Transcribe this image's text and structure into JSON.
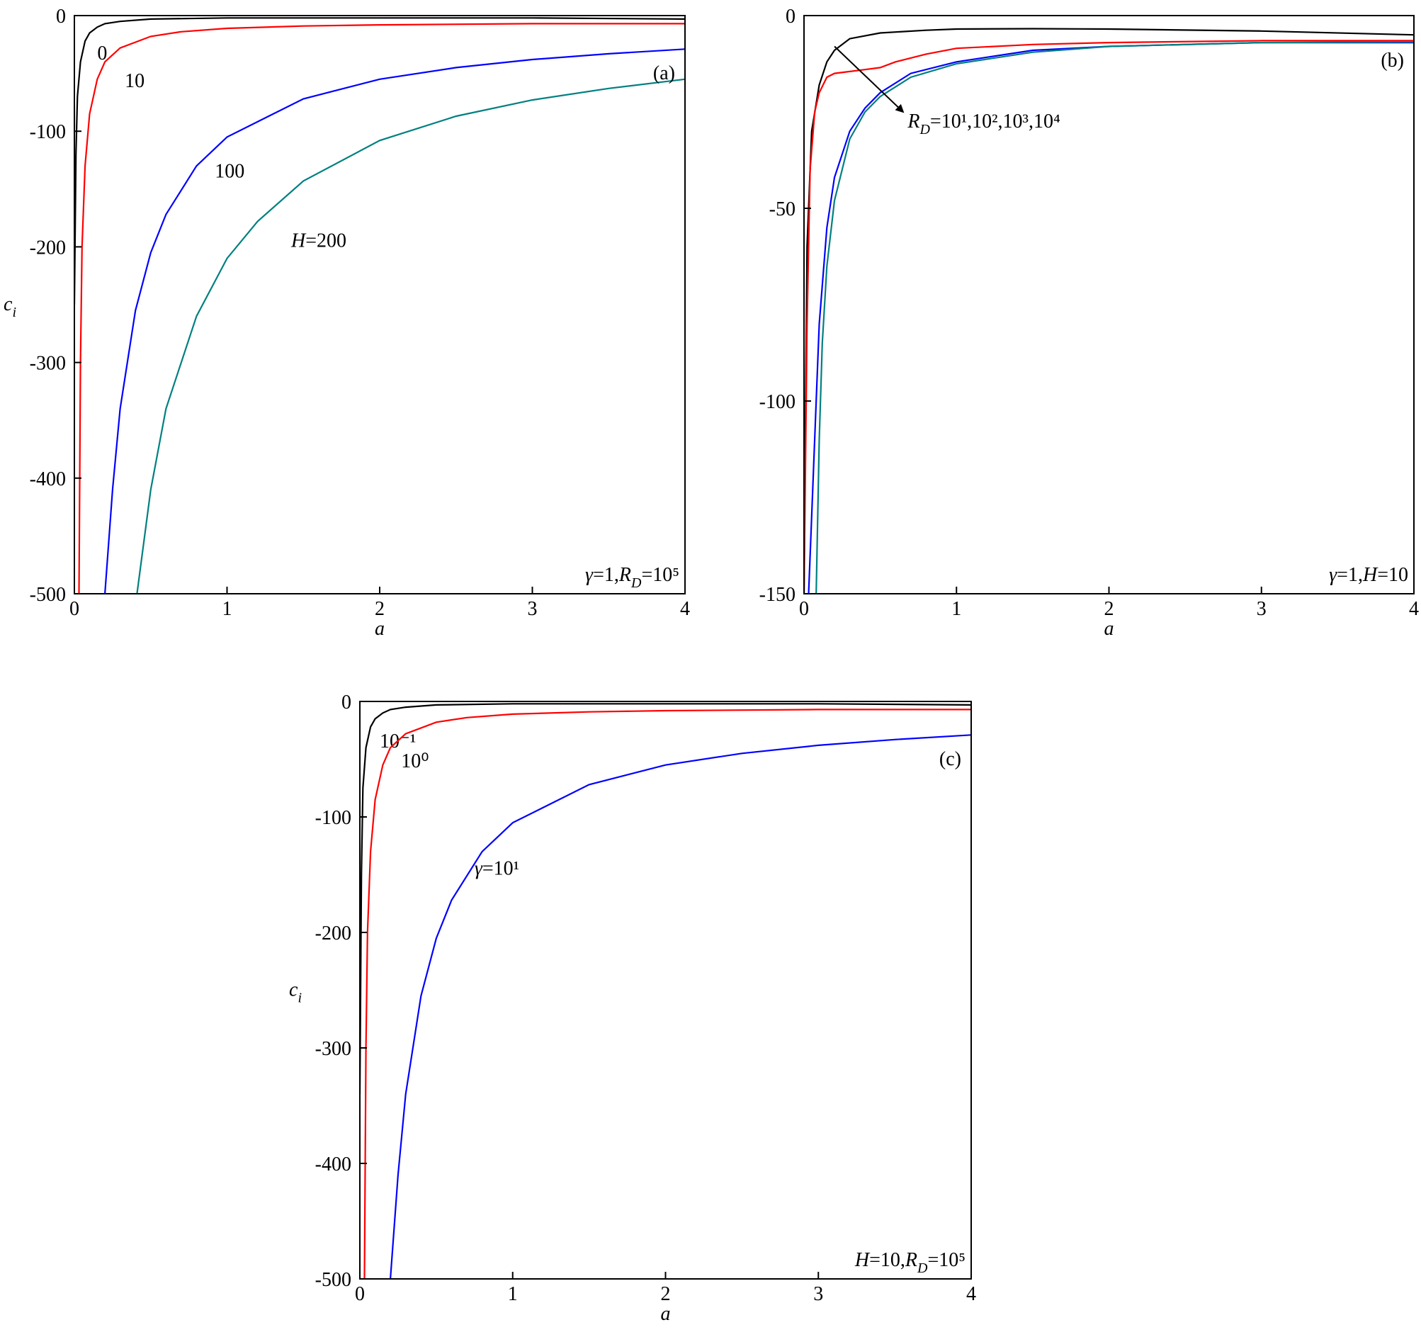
{
  "chart_data": [
    {
      "type": "line",
      "label": "(a)",
      "x_label": "a",
      "y_label": "ci",
      "annotation": "γ=1,RD=10⁵",
      "xlim": [
        0,
        4
      ],
      "ylim": [
        -500,
        0
      ],
      "xticks": [
        0,
        1,
        2,
        3,
        4
      ],
      "yticks": [
        -500,
        -400,
        -300,
        -200,
        -100,
        0
      ],
      "series": [
        {
          "name": "0",
          "color": "#000000",
          "x": [
            0,
            0.01,
            0.02,
            0.04,
            0.07,
            0.1,
            0.15,
            0.2,
            0.3,
            0.5,
            1,
            2,
            3,
            4
          ],
          "values": [
            -250,
            -120,
            -70,
            -40,
            -22,
            -15,
            -10,
            -7,
            -5,
            -3,
            -2,
            -2,
            -2,
            -3
          ]
        },
        {
          "name": "10",
          "color": "#ff0000",
          "x": [
            0.03,
            0.04,
            0.05,
            0.07,
            0.1,
            0.15,
            0.2,
            0.3,
            0.5,
            0.7,
            1,
            1.5,
            2,
            3,
            4
          ],
          "values": [
            -500,
            -300,
            -200,
            -130,
            -85,
            -55,
            -40,
            -28,
            -18,
            -14,
            -11,
            -9,
            -8,
            -7,
            -7
          ]
        },
        {
          "name": "100",
          "color": "#0000ff",
          "x": [
            0.2,
            0.25,
            0.3,
            0.4,
            0.5,
            0.6,
            0.8,
            1,
            1.5,
            2,
            2.5,
            3,
            3.5,
            4
          ],
          "values": [
            -500,
            -410,
            -340,
            -255,
            -205,
            -172,
            -130,
            -105,
            -72,
            -55,
            -45,
            -38,
            -33,
            -29
          ]
        },
        {
          "name": "H=200",
          "color": "#008080",
          "x": [
            0.41,
            0.5,
            0.6,
            0.8,
            1,
            1.2,
            1.5,
            2,
            2.5,
            3,
            3.5,
            4
          ],
          "values": [
            -500,
            -410,
            -340,
            -260,
            -210,
            -178,
            -143,
            -108,
            -87,
            -73,
            -63,
            -55
          ]
        }
      ]
    },
    {
      "type": "line",
      "label": "(b)",
      "x_label": "a",
      "annotation": "γ=1,H=10",
      "series_label": "RD=10¹,10²,10³,10⁴",
      "xlim": [
        0,
        4
      ],
      "ylim": [
        -150,
        0
      ],
      "xticks": [
        0,
        1,
        2,
        3,
        4
      ],
      "yticks": [
        -150,
        -100,
        -50,
        0
      ],
      "series": [
        {
          "color": "#000000",
          "x": [
            0,
            0.02,
            0.05,
            0.1,
            0.15,
            0.2,
            0.3,
            0.5,
            0.8,
            1,
            1.5,
            2,
            3,
            4
          ],
          "values": [
            -150,
            -60,
            -30,
            -18,
            -12,
            -9,
            -6,
            -4.5,
            -3.8,
            -3.5,
            -3.4,
            -3.5,
            -4,
            -5
          ]
        },
        {
          "color": "#ff0000",
          "x": [
            0,
            0.02,
            0.04,
            0.07,
            0.1,
            0.15,
            0.2,
            0.3,
            0.4,
            0.5,
            0.6,
            0.8,
            1,
            1.5,
            2,
            3,
            4
          ],
          "values": [
            -150,
            -80,
            -40,
            -25,
            -20,
            -16,
            -15,
            -14.5,
            -14,
            -13.5,
            -12,
            -10,
            -8.5,
            -7.5,
            -7,
            -6.5,
            -6.5
          ]
        },
        {
          "color": "#0000ff",
          "x": [
            0.03,
            0.05,
            0.08,
            0.1,
            0.15,
            0.2,
            0.3,
            0.4,
            0.5,
            0.7,
            1,
            1.5,
            2,
            3,
            4
          ],
          "values": [
            -150,
            -130,
            -100,
            -80,
            -55,
            -42,
            -30,
            -24,
            -20,
            -15,
            -12,
            -9,
            -8,
            -7,
            -7
          ]
        },
        {
          "color": "#008080",
          "x": [
            0.08,
            0.1,
            0.12,
            0.15,
            0.2,
            0.3,
            0.4,
            0.5,
            0.7,
            1,
            1.5,
            2,
            3,
            4
          ],
          "values": [
            -150,
            -110,
            -85,
            -65,
            -48,
            -32,
            -25,
            -21,
            -16,
            -12.5,
            -9.5,
            -8,
            -7,
            -6.8
          ]
        }
      ]
    },
    {
      "type": "line",
      "label": "(c)",
      "x_label": "a",
      "y_label": "ci",
      "annotation": "H=10,RD=10⁵",
      "xlim": [
        0,
        4
      ],
      "ylim": [
        -500,
        0
      ],
      "xticks": [
        0,
        1,
        2,
        3,
        4
      ],
      "yticks": [
        -500,
        -400,
        -300,
        -200,
        -100,
        0
      ],
      "series": [
        {
          "name": "10⁻¹",
          "color": "#000000",
          "x": [
            0,
            0.01,
            0.02,
            0.04,
            0.07,
            0.1,
            0.15,
            0.2,
            0.3,
            0.5,
            1,
            2,
            3,
            4
          ],
          "values": [
            -340,
            -150,
            -75,
            -40,
            -22,
            -15,
            -10,
            -7,
            -5,
            -3,
            -2,
            -2,
            -2,
            -3
          ]
        },
        {
          "name": "10⁰",
          "color": "#ff0000",
          "x": [
            0.03,
            0.04,
            0.05,
            0.07,
            0.1,
            0.15,
            0.2,
            0.3,
            0.5,
            0.7,
            1,
            1.5,
            2,
            3,
            4
          ],
          "values": [
            -500,
            -300,
            -200,
            -130,
            -85,
            -55,
            -40,
            -28,
            -18,
            -14,
            -11,
            -9,
            -8,
            -7,
            -7
          ]
        },
        {
          "name": "γ=10¹",
          "color": "#0000ff",
          "x": [
            0.2,
            0.25,
            0.3,
            0.4,
            0.5,
            0.6,
            0.8,
            1,
            1.5,
            2,
            2.5,
            3,
            3.5,
            4
          ],
          "values": [
            -500,
            -410,
            -340,
            -255,
            -205,
            -172,
            -130,
            -105,
            -72,
            -55,
            -45,
            -38,
            -33,
            -29
          ]
        }
      ]
    }
  ]
}
